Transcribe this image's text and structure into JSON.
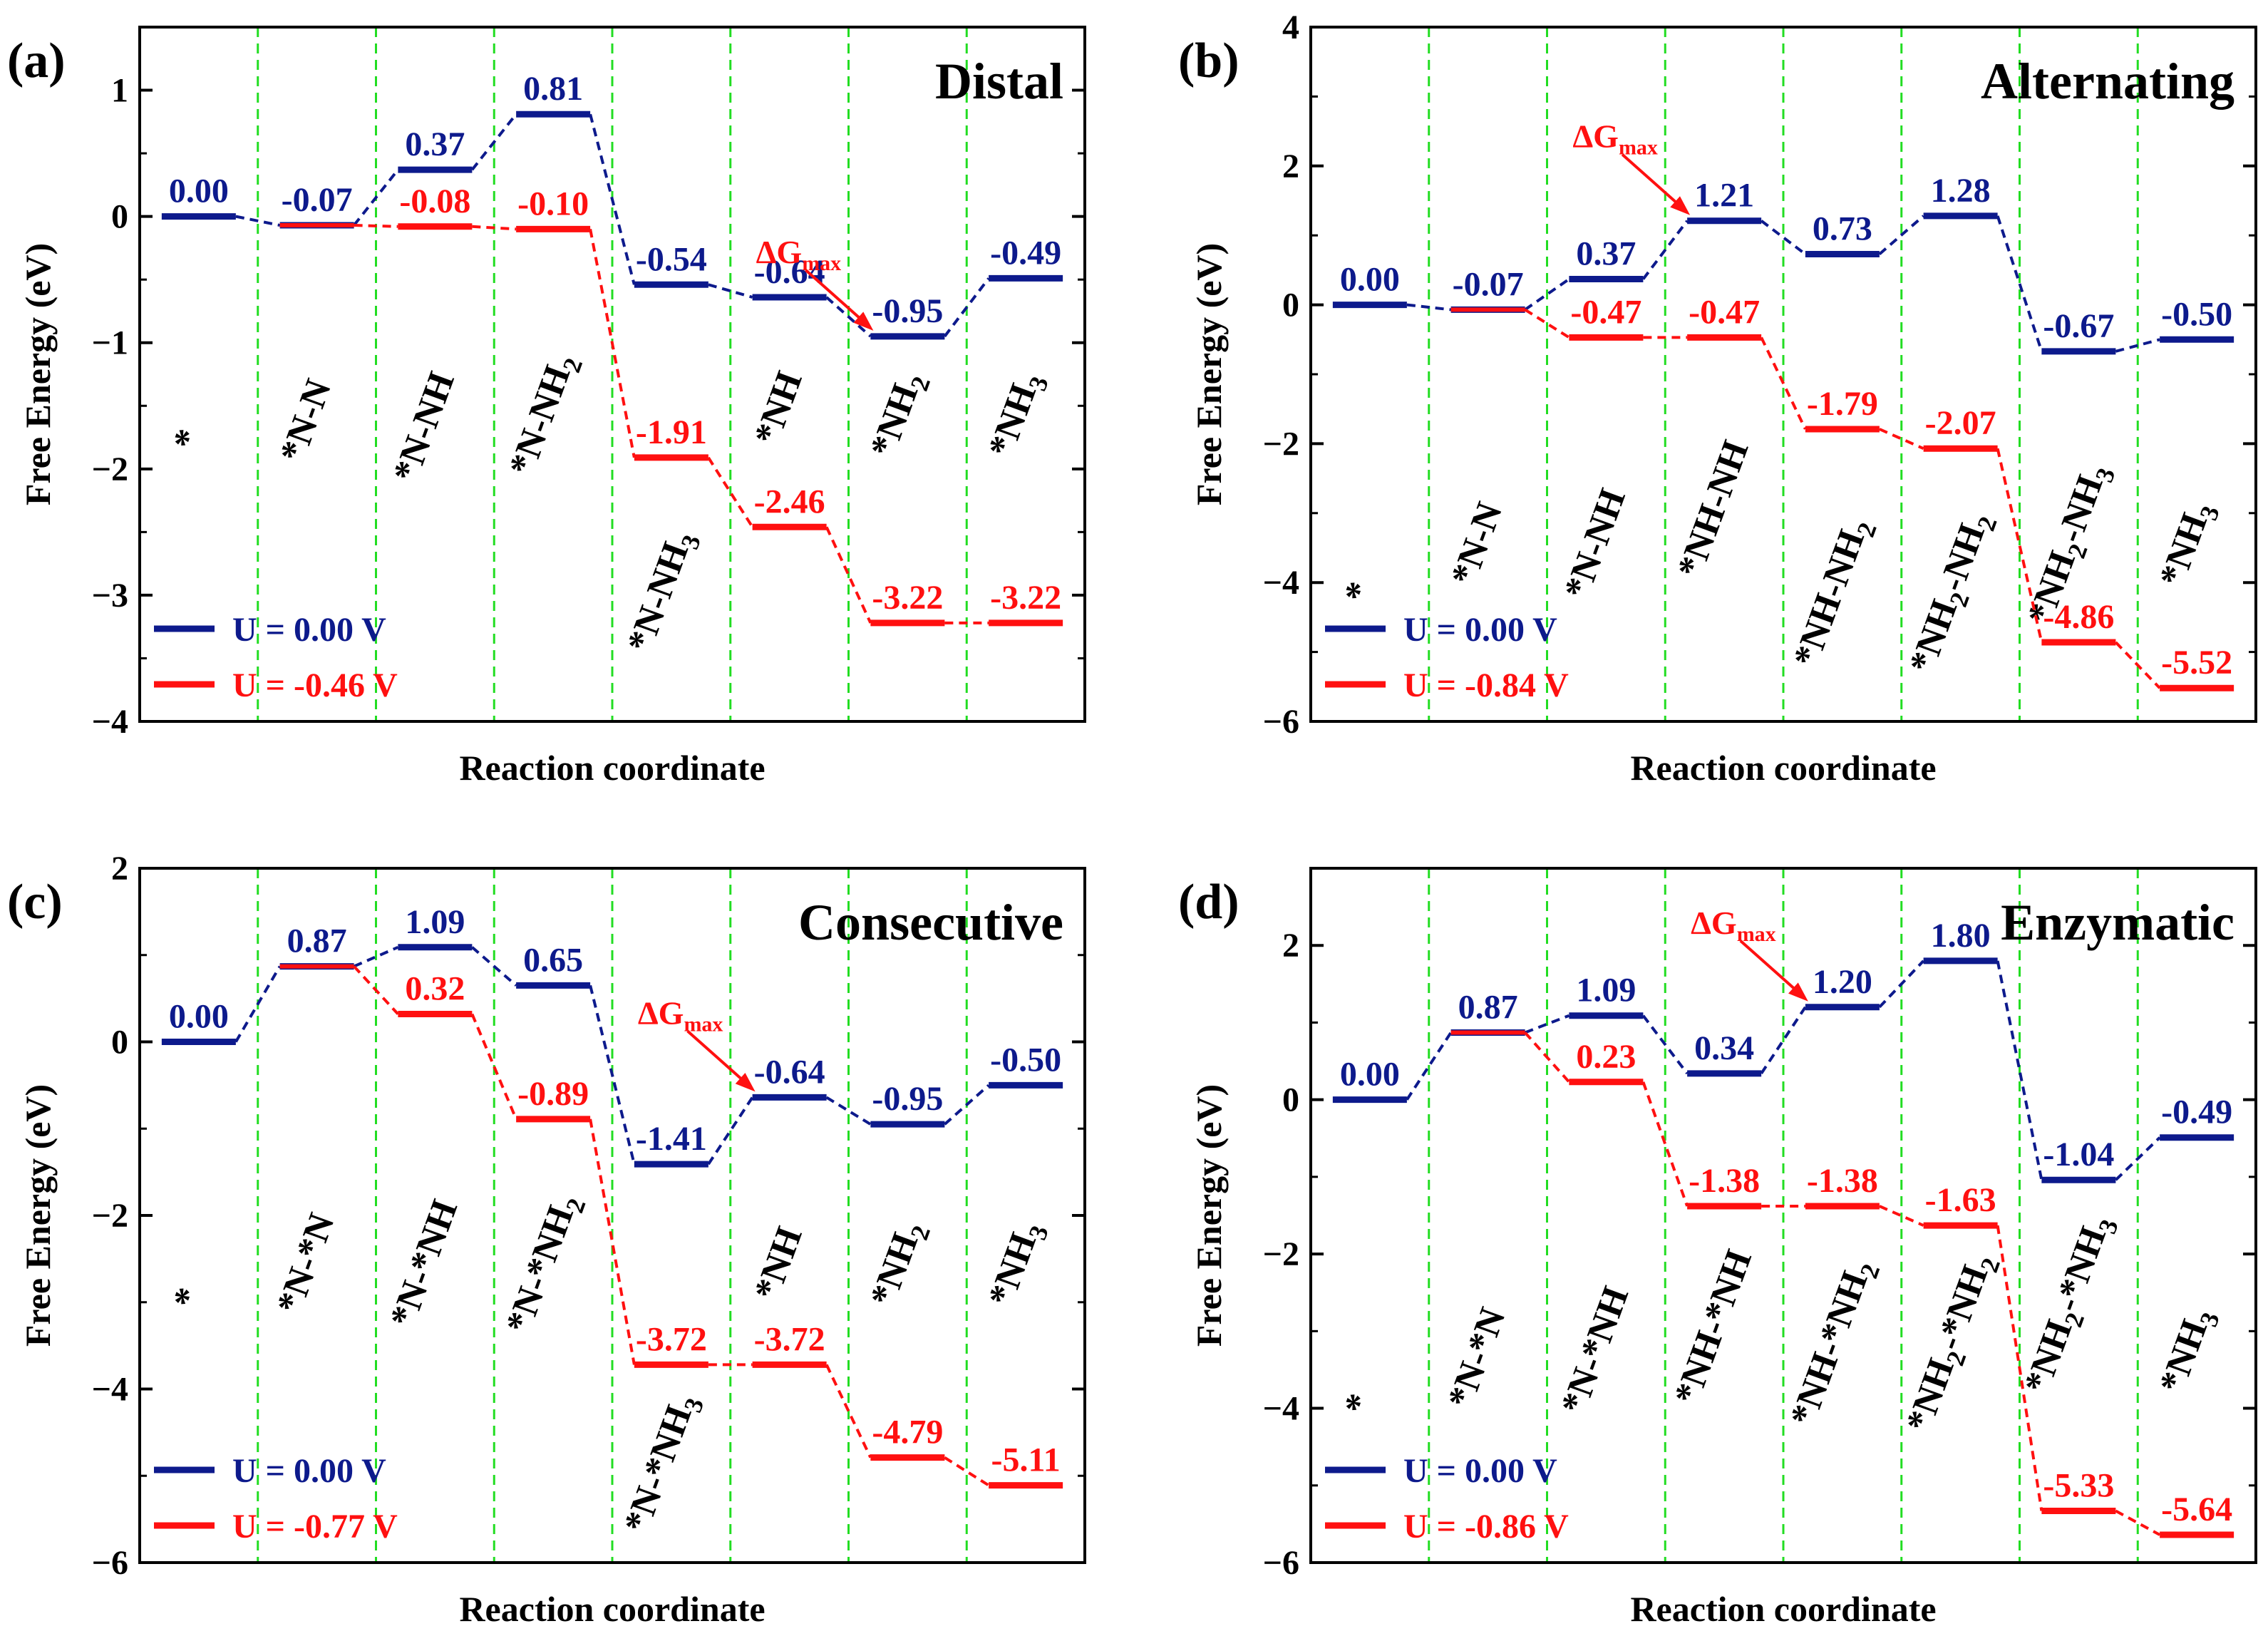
{
  "figure": {
    "colors": {
      "blue": "#0d1a8c",
      "red": "#ff1010",
      "grid": "#22dd22",
      "axis": "#000000"
    }
  },
  "chart_data": [
    {
      "panel_label": "(a)",
      "type": "line",
      "title": "Distal",
      "xlabel": "Reaction coordinate",
      "ylabel": "Free Energy (eV)",
      "ylim": [
        -4,
        1.5
      ],
      "yticks": [
        -4,
        -3,
        -2,
        -1,
        0,
        1
      ],
      "ytick_labels": [
        "−4",
        "−3",
        "−2",
        "−1",
        "0",
        "1"
      ],
      "steps": [
        {
          "main": "*"
        },
        {
          "main": "*N-N"
        },
        {
          "main": "*N-NH"
        },
        {
          "main": "*N-NH",
          "sub": "2"
        },
        {
          "main": "*N-NH",
          "sub": "3"
        },
        {
          "main": "*NH"
        },
        {
          "main": "*NH",
          "sub": "2"
        },
        {
          "main": "*NH",
          "sub": "3"
        }
      ],
      "step_label_levels": [
        -1.8,
        -1.65,
        -1.7,
        -1.6,
        -3.0,
        -1.55,
        -1.6,
        -1.6
      ],
      "series": [
        {
          "name": "U = 0.00 V",
          "color": "#0d1a8c",
          "values": [
            0.0,
            -0.07,
            0.37,
            0.81,
            -0.54,
            -0.64,
            -0.95,
            -0.49
          ],
          "labels": [
            "0.00",
            "-0.07",
            "0.37",
            "0.81",
            "-0.54",
            "-0.64",
            "-0.95",
            "-0.49"
          ]
        },
        {
          "name": "U = -0.46 V",
          "color": "#ff1010",
          "values": [
            null,
            -0.07,
            -0.08,
            -0.1,
            -1.91,
            -2.46,
            -3.22,
            -3.22
          ],
          "labels": [
            "",
            "",
            "-0.08",
            "-0.10",
            "-1.91",
            "-2.46",
            "-3.22",
            "-3.22"
          ]
        }
      ],
      "annotation": {
        "text": "ΔG",
        "sub": "max",
        "step": 6,
        "series": 0
      }
    },
    {
      "panel_label": "(b)",
      "type": "line",
      "title": "Alternating",
      "xlabel": "Reaction coordinate",
      "ylabel": "Free Energy (eV)",
      "ylim": [
        -6,
        4
      ],
      "yticks": [
        -6,
        -4,
        -2,
        0,
        2,
        4
      ],
      "ytick_labels": [
        "−6",
        "−4",
        "−2",
        "0",
        "2",
        "4"
      ],
      "steps": [
        {
          "main": "*"
        },
        {
          "main": "*N-N"
        },
        {
          "main": "*N-NH"
        },
        {
          "main": "*NH-NH"
        },
        {
          "main": "*NH-NH",
          "sub": "2"
        },
        {
          "main": "*NH",
          "sub": "2",
          "post": "-NH",
          "sub2": "2"
        },
        {
          "main": "*NH",
          "sub": "2",
          "post": "-NH",
          "sub2": "3"
        },
        {
          "main": "*NH",
          "sub": "3"
        }
      ],
      "step_label_levels": [
        -4.2,
        -3.5,
        -3.5,
        -3.0,
        -4.2,
        -4.2,
        -3.5,
        -3.5
      ],
      "series": [
        {
          "name": "U = 0.00 V",
          "color": "#0d1a8c",
          "values": [
            0.0,
            -0.07,
            0.37,
            1.21,
            0.73,
            1.28,
            -0.67,
            -0.5
          ],
          "labels": [
            "0.00",
            "-0.07",
            "0.37",
            "1.21",
            "0.73",
            "1.28",
            "-0.67",
            "-0.50"
          ]
        },
        {
          "name": "U = -0.84 V",
          "color": "#ff1010",
          "values": [
            null,
            -0.07,
            -0.47,
            -0.47,
            -1.79,
            -2.07,
            -4.86,
            -5.52
          ],
          "labels": [
            "",
            "",
            "-0.47",
            "-0.47",
            "-1.79",
            "-2.07",
            "-4.86",
            "-5.52"
          ]
        }
      ],
      "annotation": {
        "text": "ΔG",
        "sub": "max",
        "step": 3,
        "series": 0
      }
    },
    {
      "panel_label": "(c)",
      "type": "line",
      "title": "Consecutive",
      "xlabel": "Reaction coordinate",
      "ylabel": "Free Energy (eV)",
      "ylim": [
        -6,
        2
      ],
      "yticks": [
        -6,
        -4,
        -2,
        0,
        2
      ],
      "ytick_labels": [
        "−6",
        "−4",
        "−2",
        "0",
        "2"
      ],
      "steps": [
        {
          "main": "*"
        },
        {
          "main": "*N-*N"
        },
        {
          "main": "*N-*NH"
        },
        {
          "main": "*N-*NH",
          "sub": "2"
        },
        {
          "main": "*N-*NH",
          "sub": "3"
        },
        {
          "main": "*NH"
        },
        {
          "main": "*NH",
          "sub": "2"
        },
        {
          "main": "*NH",
          "sub": "3"
        }
      ],
      "step_label_levels": [
        -3.0,
        -2.6,
        -2.6,
        -2.6,
        -4.9,
        -2.6,
        -2.6,
        -2.6
      ],
      "series": [
        {
          "name": "U = 0.00 V",
          "color": "#0d1a8c",
          "values": [
            0.0,
            0.87,
            1.09,
            0.65,
            -1.41,
            -0.64,
            -0.95,
            -0.5
          ],
          "labels": [
            "0.00",
            "0.87",
            "1.09",
            "0.65",
            "-1.41",
            "-0.64",
            "-0.95",
            "-0.50"
          ]
        },
        {
          "name": "U = -0.77 V",
          "color": "#ff1010",
          "values": [
            null,
            0.87,
            0.32,
            -0.89,
            -3.72,
            -3.72,
            -4.79,
            -5.11
          ],
          "labels": [
            "",
            "",
            "0.32",
            "-0.89",
            "-3.72",
            "-3.72",
            "-4.79",
            "-5.11"
          ]
        }
      ],
      "annotation": {
        "text": "ΔG",
        "sub": "max",
        "step": 5,
        "series": 0
      }
    },
    {
      "panel_label": "(d)",
      "type": "line",
      "title": "Enzymatic",
      "xlabel": "Reaction coordinate",
      "ylabel": "Free Energy (eV)",
      "ylim": [
        -6,
        3
      ],
      "yticks": [
        -6,
        -4,
        -2,
        0,
        2
      ],
      "ytick_labels": [
        "−6",
        "−4",
        "−2",
        "0",
        "2"
      ],
      "steps": [
        {
          "main": "*"
        },
        {
          "main": "*N-*N"
        },
        {
          "main": "*N-*NH"
        },
        {
          "main": "*NH-*NH"
        },
        {
          "main": "*NH-*NH",
          "sub": "2"
        },
        {
          "main": "*NH",
          "sub": "2",
          "post": "-*NH",
          "sub2": "2"
        },
        {
          "main": "*NH",
          "sub": "2",
          "post": "-*NH",
          "sub2": "3"
        },
        {
          "main": "*NH",
          "sub": "3"
        }
      ],
      "step_label_levels": [
        -4.0,
        -3.4,
        -3.3,
        -3.0,
        -3.2,
        -3.2,
        -2.7,
        -3.3
      ],
      "series": [
        {
          "name": "U = 0.00 V",
          "color": "#0d1a8c",
          "values": [
            0.0,
            0.87,
            1.09,
            0.34,
            1.2,
            1.8,
            -1.04,
            -0.49
          ],
          "labels": [
            "0.00",
            "0.87",
            "1.09",
            "0.34",
            "1.20",
            "1.80",
            "-1.04",
            "-0.49"
          ]
        },
        {
          "name": "U = -0.86 V",
          "color": "#ff1010",
          "values": [
            null,
            0.87,
            0.23,
            -1.38,
            -1.38,
            -1.63,
            -5.33,
            -5.64
          ],
          "labels": [
            "",
            "",
            "0.23",
            "-1.38",
            "-1.38",
            "-1.63",
            "-5.33",
            "-5.64"
          ]
        }
      ],
      "annotation": {
        "text": "ΔG",
        "sub": "max",
        "step": 4,
        "series": 0
      }
    }
  ]
}
